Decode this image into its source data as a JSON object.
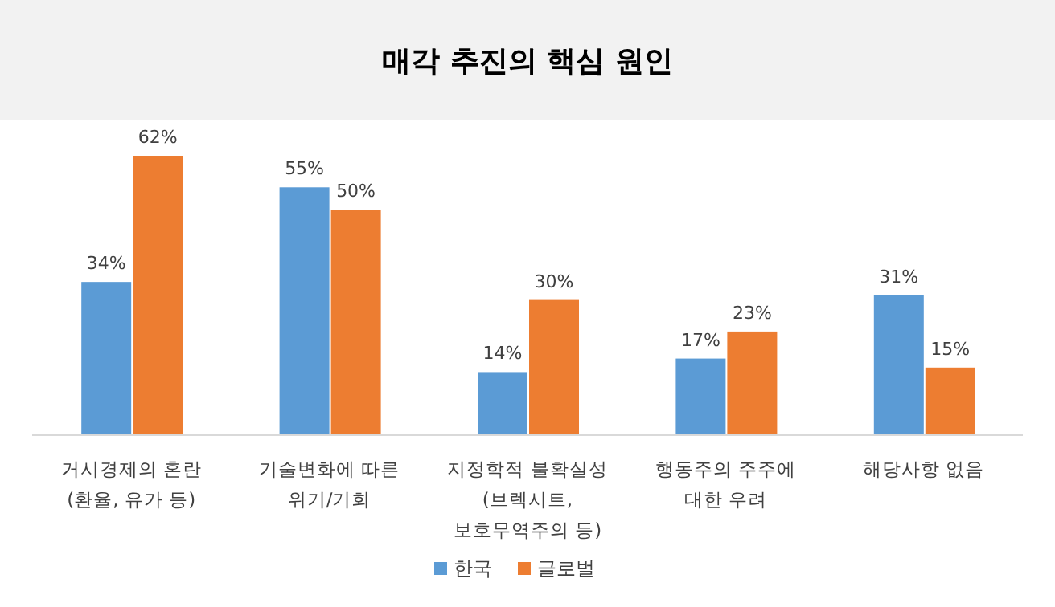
{
  "chart_data": {
    "type": "bar",
    "title": "매각 추진의 핵심 원인",
    "categories": [
      "거시경제의 혼란\n(환율, 유가 등)",
      "기술변화에 따른\n위기/기회",
      "지정학적 불확실성\n(브렉시트,\n보호무역주의 등)",
      "행동주의 주주에\n대한 우려",
      "해당사항 없음"
    ],
    "series": [
      {
        "name": "한국",
        "color": "#5b9bd5",
        "values": [
          34,
          55,
          14,
          17,
          31
        ],
        "value_labels": [
          "34%",
          "55%",
          "14%",
          "17%",
          "31%"
        ]
      },
      {
        "name": "글로벌",
        "color": "#ed7d31",
        "values": [
          62,
          50,
          30,
          23,
          15
        ],
        "value_labels": [
          "62%",
          "50%",
          "30%",
          "23%",
          "15%"
        ]
      }
    ],
    "legend": "bottom"
  }
}
